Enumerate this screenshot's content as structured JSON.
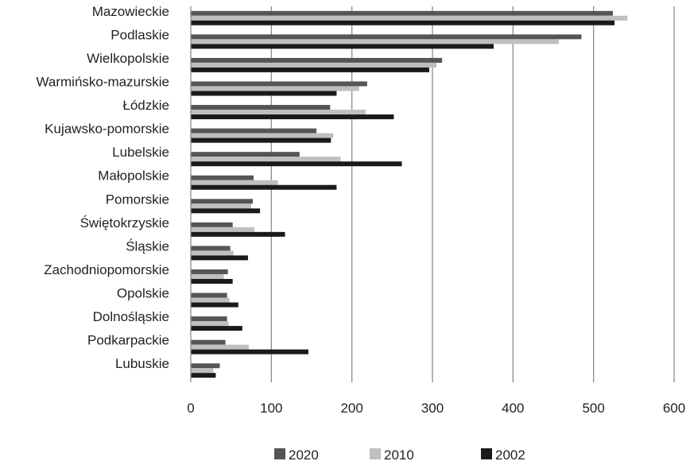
{
  "chart_data": {
    "type": "bar",
    "orientation": "horizontal",
    "categories": [
      "Mazowieckie",
      "Podlaskie",
      "Wielkopolskie",
      "Warmińsko-mazurskie",
      "Łódzkie",
      "Kujawsko-pomorskie",
      "Lubelskie",
      "Małopolskie",
      "Pomorskie",
      "Świętokrzyskie",
      "Śląskie",
      "Zachodniopomorskie",
      "Opolskie",
      "Dolnośląskie",
      "Podkarpackie",
      "Lubuskie"
    ],
    "series": [
      {
        "name": "2020",
        "color": "#555555",
        "values": [
          524,
          485,
          312,
          219,
          173,
          156,
          135,
          78,
          77,
          52,
          49,
          46,
          45,
          45,
          43,
          36
        ]
      },
      {
        "name": "2010",
        "color": "#bfbfbf",
        "values": [
          542,
          457,
          305,
          209,
          217,
          177,
          186,
          108,
          75,
          79,
          53,
          41,
          48,
          47,
          72,
          28
        ]
      },
      {
        "name": "2002",
        "color": "#1a1a1a",
        "values": [
          526,
          376,
          296,
          181,
          252,
          174,
          262,
          181,
          86,
          117,
          71,
          52,
          59,
          64,
          146,
          31
        ]
      }
    ],
    "xticks": [
      "0",
      "100",
      "200",
      "300",
      "400",
      "500",
      "600"
    ],
    "xlim": [
      0,
      600
    ],
    "grid": "vertical",
    "legend": "bottom",
    "title": "",
    "xlabel": "",
    "ylabel": ""
  }
}
